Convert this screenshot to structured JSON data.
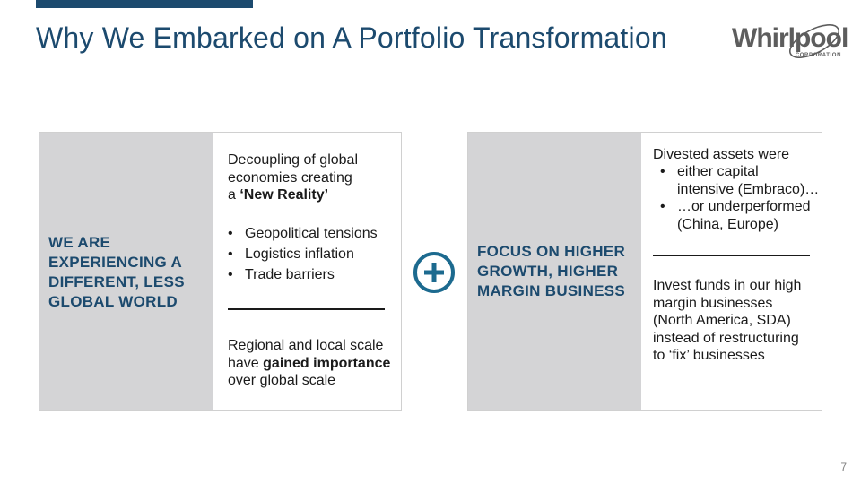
{
  "header": {
    "title": "Why We Embarked on A Portfolio Transformation",
    "accent_color": "#1c4a6e"
  },
  "logo": {
    "word": "Whirlpool",
    "sub": "CORPORATION",
    "icon": "whirlpool-swirl-icon"
  },
  "left_panel": {
    "heading": "WE ARE EXPERIENCING A DIFFERENT, LESS GLOBAL WORLD",
    "intro_line1": "Decoupling of global",
    "intro_line2": "economies creating",
    "intro_prefix": "a ",
    "intro_bold": "‘New Reality’",
    "bullets": [
      "Geopolitical tensions",
      "Logistics inflation",
      "Trade barriers"
    ],
    "outro_line1": "Regional and local scale",
    "outro_prefix": "have ",
    "outro_bold": "gained importance",
    "outro_line3": "over global scale"
  },
  "connector": {
    "icon": "plus-circle-icon"
  },
  "right_panel": {
    "heading": "FOCUS ON HIGHER GROWTH, HIGHER MARGIN BUSINESS",
    "intro": "Divested assets were",
    "bullets": [
      {
        "line1": "either capital",
        "line2": "intensive (Embraco)…"
      },
      {
        "line1": "…or underperformed",
        "line2": "(China, Europe)"
      }
    ],
    "outro_lines": [
      "Invest funds in our high",
      "margin businesses",
      "(North America, SDA)",
      "instead of restructuring",
      "to ‘fix’ businesses"
    ]
  },
  "footer": {
    "page_number": "7"
  }
}
